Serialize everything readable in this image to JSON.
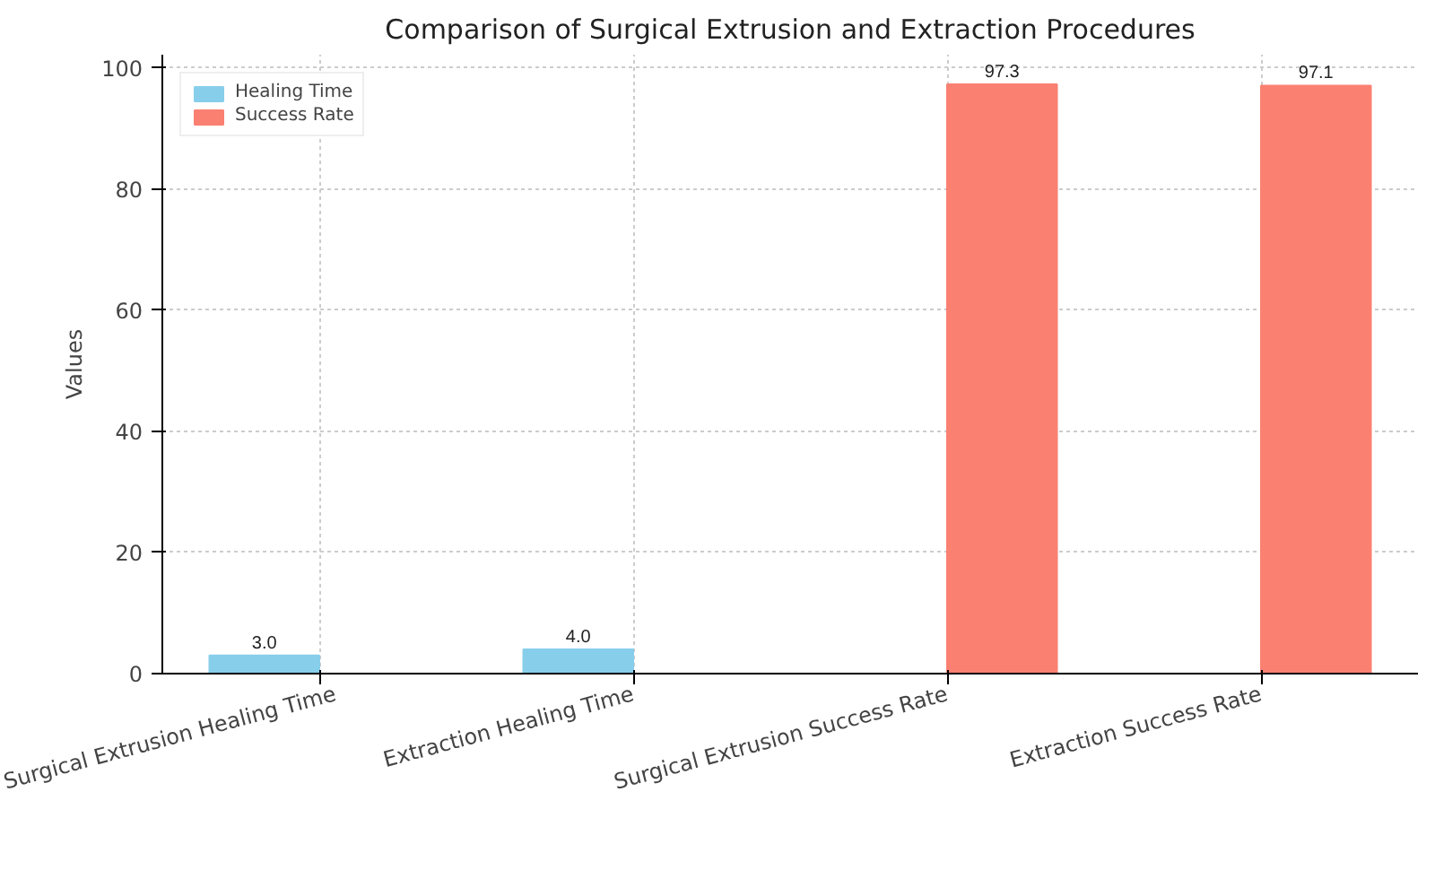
{
  "chart_data": {
    "type": "bar",
    "title": "Comparison of Surgical Extrusion and Extraction Procedures",
    "ylabel": "Values",
    "categories": [
      "Surgical Extrusion Healing Time",
      "Extraction Healing Time",
      "Surgical Extrusion Success Rate",
      "Extraction Success Rate"
    ],
    "series": [
      {
        "name": "Healing Time",
        "color": "#87ceeb",
        "values": [
          3.0,
          4.0,
          null,
          null
        ],
        "value_labels": [
          "3.0",
          "4.0",
          null,
          null
        ]
      },
      {
        "name": "Success Rate",
        "color": "#fa8072",
        "values": [
          null,
          null,
          97.3,
          97.1
        ],
        "value_labels": [
          null,
          null,
          "97.3",
          "97.1"
        ]
      }
    ],
    "ylim": [
      0,
      102.2
    ],
    "yticks": [
      0,
      20,
      40,
      60,
      80,
      100
    ],
    "grid": true,
    "legend": "top left"
  }
}
